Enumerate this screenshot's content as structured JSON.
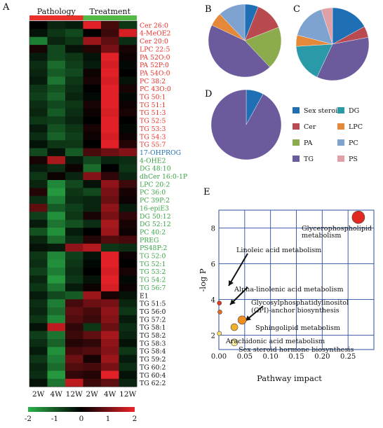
{
  "panel_labels": {
    "a": "A",
    "b": "B",
    "c": "C",
    "d": "D",
    "e": "E"
  },
  "heatmap": {
    "group_headers": [
      {
        "label": "Pathology",
        "color": "#e8312a"
      },
      {
        "label": "Treatment",
        "color": "#52b947"
      }
    ],
    "column_labels": [
      "2W",
      "4W",
      "12W",
      "2W",
      "4W",
      "12W"
    ],
    "colorbar": {
      "ticks": [
        "-2",
        "-1",
        "0",
        "1",
        "2"
      ],
      "colors": [
        "#2bb34a",
        "#000000",
        "#ee2229"
      ]
    },
    "rows": [
      {
        "label": "Cer 26:0",
        "color": "#e8312a",
        "values": [
          0.0,
          -0.4,
          -0.3,
          1.9,
          0.6,
          -0.6
        ]
      },
      {
        "label": "4-MeOE2",
        "color": "#e8312a",
        "values": [
          -0.2,
          -0.6,
          -0.8,
          0.0,
          0.5,
          1.8
        ]
      },
      {
        "label": "Cer 20:0",
        "color": "#e8312a",
        "values": [
          -1.4,
          -0.4,
          -0.6,
          1.3,
          0.8,
          -0.5
        ]
      },
      {
        "label": "LPC 22:5",
        "color": "#e8312a",
        "values": [
          0.2,
          -0.8,
          -0.2,
          0.3,
          1.0,
          0.2
        ]
      },
      {
        "label": "PA 52O:0",
        "color": "#e8312a",
        "values": [
          -0.3,
          -0.8,
          -0.6,
          -0.2,
          1.9,
          0.1
        ]
      },
      {
        "label": "PA 52P:0",
        "color": "#e8312a",
        "values": [
          -0.5,
          -1.2,
          -0.7,
          -0.3,
          1.8,
          -0.1
        ]
      },
      {
        "label": "PA 54O:0",
        "color": "#e8312a",
        "values": [
          -0.4,
          -1.0,
          -0.8,
          0.1,
          1.9,
          0.0
        ]
      },
      {
        "label": "PC 38:2",
        "color": "#e8312a",
        "values": [
          -0.3,
          -1.3,
          -0.6,
          0.2,
          1.8,
          -0.2
        ]
      },
      {
        "label": "PC 43O:0",
        "color": "#e8312a",
        "values": [
          -0.6,
          -0.9,
          -0.5,
          0.0,
          1.9,
          0.2
        ]
      },
      {
        "label": "TG 50:1",
        "color": "#e8312a",
        "values": [
          -0.7,
          -1.1,
          -0.4,
          -0.1,
          1.9,
          -0.1
        ]
      },
      {
        "label": "TG 51:1",
        "color": "#e8312a",
        "values": [
          -0.5,
          -0.8,
          -0.6,
          0.2,
          1.9,
          0.1
        ]
      },
      {
        "label": "TG 51:3",
        "color": "#e8312a",
        "values": [
          -0.4,
          -1.0,
          -0.5,
          0.1,
          1.8,
          0.2
        ]
      },
      {
        "label": "TG 52:5",
        "color": "#e8312a",
        "values": [
          -0.6,
          -0.7,
          -0.4,
          0.0,
          1.9,
          0.0
        ]
      },
      {
        "label": "TG 53:3",
        "color": "#e8312a",
        "values": [
          -0.3,
          -0.9,
          -0.6,
          0.2,
          1.9,
          -0.1
        ]
      },
      {
        "label": "TG 54:3",
        "color": "#e8312a",
        "values": [
          -0.5,
          -1.1,
          -0.7,
          0.1,
          1.8,
          0.1
        ]
      },
      {
        "label": "TG 55:7",
        "color": "#e8312a",
        "values": [
          -0.2,
          -0.6,
          -0.6,
          0.0,
          1.9,
          0.3
        ]
      },
      {
        "label": "17-OHPROG",
        "color": "#1f6fb5",
        "values": [
          -0.8,
          -0.2,
          -1.0,
          0.6,
          0.9,
          1.1
        ]
      },
      {
        "label": "4-OHE2",
        "color": "#3aa346",
        "values": [
          0.2,
          1.4,
          -0.3,
          -0.8,
          -0.4,
          -0.5
        ]
      },
      {
        "label": "DG 48:10",
        "color": "#3aa346",
        "values": [
          -0.3,
          -0.5,
          0.1,
          -1.2,
          0.0,
          -0.6
        ]
      },
      {
        "label": "dhCer 16:0-1P",
        "color": "#3aa346",
        "values": [
          -0.6,
          0.1,
          -0.4,
          1.1,
          0.4,
          -0.4
        ]
      },
      {
        "label": "LPC 20:2",
        "color": "#3aa346",
        "values": [
          -0.4,
          -1.5,
          -0.8,
          -0.2,
          1.2,
          0.5
        ]
      },
      {
        "label": "PC 36:0",
        "color": "#3aa346",
        "values": [
          0.3,
          -1.7,
          -0.6,
          -0.8,
          1.0,
          0.2
        ]
      },
      {
        "label": "PC 39P:2",
        "color": "#3aa346",
        "values": [
          -0.5,
          -1.4,
          -0.5,
          -0.4,
          0.9,
          0.1
        ]
      },
      {
        "label": "16-epiE3",
        "color": "#3aa346",
        "values": [
          0.8,
          -1.0,
          -0.7,
          -0.4,
          1.2,
          -0.3
        ]
      },
      {
        "label": "DG 50:12",
        "color": "#3aa346",
        "values": [
          -0.7,
          -1.6,
          -0.6,
          0.2,
          1.0,
          0.4
        ]
      },
      {
        "label": "DG 52:12",
        "color": "#3aa346",
        "values": [
          -0.3,
          -1.3,
          -0.9,
          -0.5,
          1.4,
          0.2
        ]
      },
      {
        "label": "PC 40:2",
        "color": "#3aa346",
        "values": [
          -0.9,
          -1.6,
          -0.3,
          0.0,
          1.3,
          0.1
        ]
      },
      {
        "label": "PREG",
        "color": "#3aa346",
        "values": [
          -0.4,
          -1.2,
          -0.5,
          0.3,
          0.7,
          0.6
        ]
      },
      {
        "label": "PS48P:2",
        "color": "#3aa346",
        "values": [
          -0.2,
          -0.3,
          1.2,
          1.5,
          -0.6,
          -0.5
        ]
      },
      {
        "label": "TG 52:0",
        "color": "#3aa346",
        "values": [
          -0.6,
          -1.5,
          -0.7,
          -0.2,
          1.9,
          0.1
        ]
      },
      {
        "label": "TG 52:1",
        "color": "#3aa346",
        "values": [
          -0.5,
          -1.6,
          -0.6,
          -0.1,
          1.9,
          0.0
        ]
      },
      {
        "label": "TG 53:2",
        "color": "#3aa346",
        "values": [
          -0.7,
          -1.4,
          -0.5,
          0.0,
          1.8,
          0.2
        ]
      },
      {
        "label": "TG 54:2",
        "color": "#3aa346",
        "values": [
          -0.4,
          -1.7,
          -0.6,
          -0.2,
          1.9,
          -0.1
        ]
      },
      {
        "label": "TG 56:7",
        "color": "#3aa346",
        "values": [
          -0.6,
          -1.3,
          -0.3,
          0.1,
          1.8,
          0.1
        ]
      },
      {
        "label": "E1",
        "color": "#111111",
        "values": [
          -0.3,
          -0.8,
          -1.0,
          1.3,
          0.2,
          -0.2
        ]
      },
      {
        "label": "TG 51:5",
        "color": "#111111",
        "values": [
          -0.5,
          -1.4,
          0.6,
          0.9,
          1.0,
          -0.4
        ]
      },
      {
        "label": "TG 56:0",
        "color": "#111111",
        "values": [
          -0.4,
          -1.2,
          0.8,
          0.6,
          1.2,
          -0.6
        ]
      },
      {
        "label": "TG 57:2",
        "color": "#111111",
        "values": [
          -0.6,
          -1.5,
          0.7,
          0.5,
          1.1,
          -0.3
        ]
      },
      {
        "label": "TG 58:1",
        "color": "#111111",
        "values": [
          -0.2,
          1.6,
          0.4,
          -0.6,
          0.9,
          -0.5
        ]
      },
      {
        "label": "TG 58:2",
        "color": "#111111",
        "values": [
          -0.7,
          -1.3,
          0.5,
          0.8,
          1.4,
          -0.4
        ]
      },
      {
        "label": "TG 58:3",
        "color": "#111111",
        "values": [
          -0.5,
          -1.1,
          0.3,
          0.4,
          1.2,
          -0.2
        ]
      },
      {
        "label": "TG 58:4",
        "color": "#111111",
        "values": [
          -0.3,
          -1.6,
          0.6,
          0.7,
          1.1,
          -0.6
        ]
      },
      {
        "label": "TG 59:2",
        "color": "#111111",
        "values": [
          -0.6,
          -1.4,
          0.9,
          0.2,
          1.3,
          -0.3
        ]
      },
      {
        "label": "TG 60:2",
        "color": "#111111",
        "values": [
          -0.4,
          -1.2,
          0.7,
          0.6,
          1.0,
          -0.5
        ]
      },
      {
        "label": "TG 60:4",
        "color": "#111111",
        "values": [
          -0.5,
          -1.7,
          0.4,
          0.3,
          1.9,
          -0.2
        ]
      },
      {
        "label": "TG 62:2",
        "color": "#111111",
        "values": [
          -0.2,
          -1.3,
          1.6,
          0.5,
          0.8,
          -0.4
        ]
      }
    ]
  },
  "pie_legend": [
    {
      "label": "Sex steroid",
      "color": "#1f6fb5"
    },
    {
      "label": "DG",
      "color": "#2a9aa8"
    },
    {
      "label": "Cer",
      "color": "#b94a4f"
    },
    {
      "label": "LPC",
      "color": "#e6883a"
    },
    {
      "label": "PA",
      "color": "#8cab4c"
    },
    {
      "label": "PC",
      "color": "#7ea3d0"
    },
    {
      "label": "TG",
      "color": "#6b5a9c"
    },
    {
      "label": "PS",
      "color": "#e0a0a6"
    }
  ],
  "chart_data": [
    {
      "type": "pie",
      "panel": "B",
      "slices": [
        {
          "category": "Sex steroid",
          "value": 6
        },
        {
          "category": "Cer",
          "value": 13
        },
        {
          "category": "PA",
          "value": 19
        },
        {
          "category": "TG",
          "value": 44
        },
        {
          "category": "LPC",
          "value": 6
        },
        {
          "category": "PC",
          "value": 12
        }
      ]
    },
    {
      "type": "pie",
      "panel": "C",
      "slices": [
        {
          "category": "Sex steroid",
          "value": 17
        },
        {
          "category": "Cer",
          "value": 5
        },
        {
          "category": "TG",
          "value": 35
        },
        {
          "category": "DG",
          "value": 17
        },
        {
          "category": "LPC",
          "value": 5
        },
        {
          "category": "PC",
          "value": 16
        },
        {
          "category": "PS",
          "value": 5
        }
      ]
    },
    {
      "type": "pie",
      "panel": "D",
      "slices": [
        {
          "category": "Sex steroid",
          "value": 8
        },
        {
          "category": "TG",
          "value": 92
        }
      ]
    },
    {
      "type": "scatter",
      "panel": "E",
      "xlabel": "Pathway impact",
      "ylabel": "-log P",
      "xlim": [
        0,
        0.3
      ],
      "ylim": [
        1.2,
        9
      ],
      "xticks": [
        "0.00",
        "0.05",
        "0.10",
        "0.15",
        "0.20",
        "0.25"
      ],
      "yticks": [
        "2",
        "4",
        "6",
        "8"
      ],
      "points": [
        {
          "x": 0.27,
          "y": 8.6,
          "color": "#e02a1f"
        },
        {
          "x": 0.001,
          "y": 3.8,
          "color": "#e03a20"
        },
        {
          "x": 0.002,
          "y": 3.3,
          "color": "#e86a22"
        },
        {
          "x": 0.045,
          "y": 2.85,
          "color": "#ee8e22"
        },
        {
          "x": 0.03,
          "y": 2.45,
          "color": "#f2b12d"
        },
        {
          "x": 0.001,
          "y": 2.1,
          "color": "#f6e06e"
        },
        {
          "x": 0.03,
          "y": 1.6,
          "color": "#f6ec9c"
        }
      ],
      "annotations": [
        {
          "text": "Glycerophospholipid"
        },
        {
          "text": "metabolism"
        },
        {
          "text": "Linoleic acid metabolism"
        },
        {
          "text": "Alpha-linolenic acid metabolism"
        },
        {
          "text": "Glycosylphosphatidylinositol"
        },
        {
          "text": "(GPI)-anchor biosynthesis"
        },
        {
          "text": "Sphingolipid metabolism"
        },
        {
          "text": "Arachidonic acid metabolism"
        },
        {
          "text": "Sex steroid hormone biosynthesis"
        }
      ]
    }
  ]
}
